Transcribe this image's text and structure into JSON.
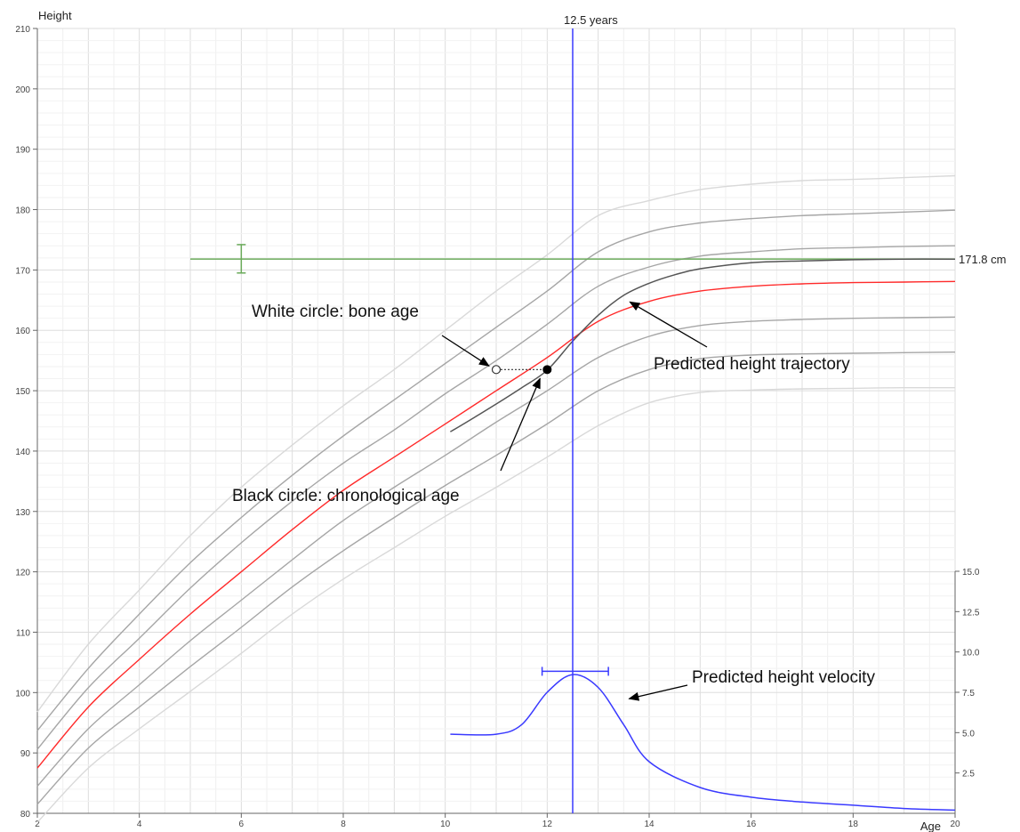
{
  "chart_data": {
    "type": "line",
    "title": "",
    "xlabel": "Age",
    "ylabel": "Height",
    "xlim": [
      2,
      20
    ],
    "ylim": [
      80,
      210
    ],
    "y2lim": [
      0,
      15
    ],
    "x_ticks": [
      "2",
      "4",
      "6",
      "8",
      "10",
      "12",
      "14",
      "16",
      "18",
      "20"
    ],
    "y_ticks": [
      "80",
      "90",
      "100",
      "110",
      "120",
      "130",
      "140",
      "150",
      "160",
      "170",
      "180",
      "190",
      "200",
      "210"
    ],
    "y2_ticks": [
      "2.5",
      "5.0",
      "7.5",
      "10.0",
      "12.5",
      "15.0"
    ],
    "grid": true,
    "colors": {
      "reference_light": "#d9d9d9",
      "reference_dark": "#a6a6a6",
      "median": "#ff2a2a",
      "prediction": "#555555",
      "velocity": "#3a3aff",
      "target": "#6aaa5a"
    },
    "percentile_curves": {
      "x": [
        2,
        3,
        4,
        5,
        6,
        7,
        8,
        9,
        10,
        11,
        12,
        13,
        14,
        15,
        16,
        17,
        18,
        19,
        20
      ],
      "series": [
        {
          "values": [
            96.8,
            108,
            117,
            126,
            134,
            141,
            147.5,
            153.5,
            160,
            166.5,
            172.5,
            179,
            181.5,
            183.3,
            184.2,
            184.8,
            185,
            185.3,
            185.6
          ],
          "color": "#d9d9d9"
        },
        {
          "values": [
            93.7,
            104,
            113,
            121.5,
            129,
            136,
            142.5,
            148.5,
            154.5,
            160.5,
            166.5,
            173,
            176.3,
            177.8,
            178.5,
            179,
            179.3,
            179.6,
            179.9
          ],
          "color": "#a6a6a6"
        },
        {
          "values": [
            90.6,
            100.8,
            109,
            117.3,
            124.8,
            131.7,
            138,
            143.5,
            149.5,
            155,
            161,
            167.3,
            170.5,
            172.3,
            173,
            173.5,
            173.7,
            173.9,
            174
          ],
          "color": "#a6a6a6"
        },
        {
          "values": [
            87.5,
            97.6,
            105.5,
            113,
            120,
            127,
            133.5,
            139,
            144.5,
            150,
            155.5,
            161.5,
            164.8,
            166.5,
            167.3,
            167.7,
            167.9,
            168,
            168.1
          ],
          "color": "#ff2a2a"
        },
        {
          "values": [
            84.5,
            94,
            101.3,
            108.6,
            115.3,
            122,
            128.5,
            134,
            139.3,
            144.8,
            150,
            155.5,
            159,
            160.8,
            161.5,
            161.8,
            162,
            162.1,
            162.2
          ],
          "color": "#a6a6a6"
        },
        {
          "values": [
            81.5,
            90.8,
            97.6,
            104.3,
            110.8,
            117.5,
            123.5,
            129,
            134.3,
            139.3,
            144.5,
            150,
            153.5,
            155.3,
            155.9,
            156.1,
            156.2,
            156.3,
            156.4
          ],
          "color": "#a6a6a6"
        },
        {
          "values": [
            78.5,
            87.5,
            94,
            100.2,
            106.5,
            113,
            118.8,
            124,
            129.2,
            134,
            139,
            144.2,
            148,
            149.7,
            150.1,
            150.3,
            150.4,
            150.5,
            150.5
          ],
          "color": "#d9d9d9"
        }
      ]
    },
    "predicted_height": {
      "name": "Predicted height trajectory",
      "x": [
        10.1,
        10.5,
        11,
        11.5,
        12,
        12.5,
        13,
        13.5,
        14,
        14.5,
        15,
        16,
        17,
        18,
        19,
        20
      ],
      "values": [
        143.2,
        145.2,
        147.8,
        150.5,
        153.4,
        158.2,
        162.5,
        165.8,
        167.8,
        169.2,
        170.2,
        171.2,
        171.5,
        171.7,
        171.8,
        171.8
      ]
    },
    "predicted_velocity": {
      "name": "Predicted height velocity",
      "x": [
        10.1,
        11,
        11.5,
        12,
        12.5,
        13,
        13.5,
        14,
        15,
        16,
        17,
        18,
        19,
        20
      ],
      "values": [
        4.9,
        4.9,
        5.5,
        7.5,
        8.6,
        7.8,
        5.5,
        3.2,
        1.6,
        1.0,
        0.7,
        0.5,
        0.3,
        0.2
      ]
    },
    "bone_age_point": {
      "x": 11,
      "y": 153.5
    },
    "chronological_age_point": {
      "x": 12,
      "y": 153.5
    },
    "target_height": {
      "value": 171.8,
      "x_start": 5,
      "x_end": 20,
      "label": "171.8 cm",
      "error_bar": {
        "x": 6,
        "low": 169.5,
        "high": 174.2
      }
    },
    "peak_marker": {
      "x": 12.5,
      "label": "12.5 years"
    },
    "velocity_peak_range": {
      "low": 11.9,
      "high": 13.2,
      "y": 8.8
    },
    "annotations": [
      {
        "key": "bone_age",
        "text": "White circle: bone age"
      },
      {
        "key": "chronological",
        "text": "Black circle: chronological age"
      },
      {
        "key": "trajectory",
        "text": "Predicted height trajectory"
      },
      {
        "key": "velocity",
        "text": "Predicted height velocity"
      }
    ]
  }
}
